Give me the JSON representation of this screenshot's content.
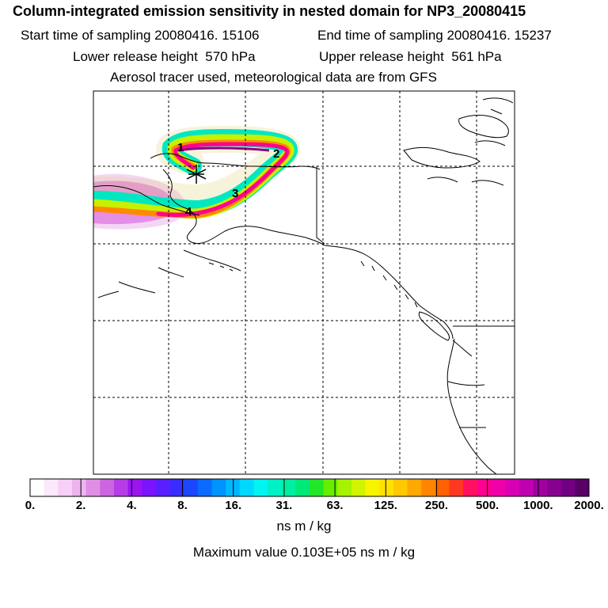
{
  "header": {
    "title": "Column-integrated emission sensitivity in nested domain for NP3_20080415",
    "start_time": "Start time of sampling 20080416. 15106",
    "end_time": "End time of sampling 20080416. 15237",
    "lower_height": "Lower release height  570 hPa",
    "upper_height": "Upper release height  561 hPa",
    "tracer_note": "Aerosol tracer used, meteorological data are from GFS"
  },
  "map": {
    "day_markers": [
      "1",
      "2",
      "3",
      "4"
    ],
    "release_marker": "release-point-star"
  },
  "colorbar": {
    "labels": [
      "0.",
      "2.",
      "4.",
      "8.",
      "16.",
      "31.",
      "63.",
      "125.",
      "250.",
      "500.",
      "1000.",
      "2000."
    ],
    "colors": [
      "#ffffff",
      "#fbe8fb",
      "#f6d0f6",
      "#eeb4ee",
      "#e08ee4",
      "#cc66e0",
      "#b63ce6",
      "#9a14f0",
      "#7a14ff",
      "#5a1eff",
      "#3a2cff",
      "#1c46ff",
      "#0a6cff",
      "#0092ff",
      "#00b6ff",
      "#00d8ff",
      "#00f4f0",
      "#00f0c8",
      "#00eea0",
      "#00e878",
      "#22e628",
      "#66ee00",
      "#a6f200",
      "#d2f400",
      "#f8f400",
      "#ffe000",
      "#ffc800",
      "#ffa800",
      "#ff8400",
      "#ff6000",
      "#ff3820",
      "#ff1060",
      "#ff0090",
      "#f000a8",
      "#d800b4",
      "#c000b0",
      "#a000a0",
      "#880090",
      "#700080",
      "#580068"
    ],
    "units": "ns m / kg",
    "max_value": "Maximum value  0.103E+05 ns m / kg"
  }
}
